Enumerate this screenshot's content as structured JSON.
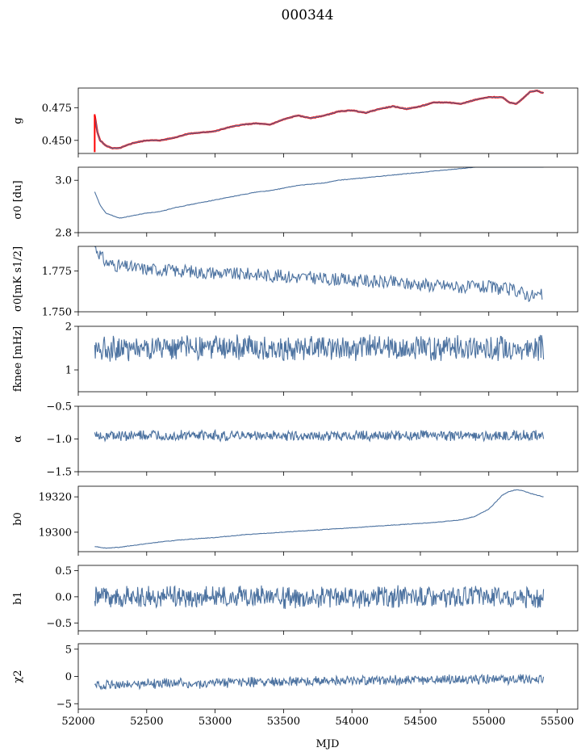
{
  "figure": {
    "title": "000344",
    "xlabel": "MJD"
  },
  "chart_data": [
    {
      "type": "line",
      "panel": "g",
      "ylabel": "g",
      "xlim": [
        52000,
        55650
      ],
      "ylim": [
        0.44,
        0.49
      ],
      "yticks": [
        0.45,
        0.475
      ],
      "yticklabels": [
        "0.450",
        "0.475"
      ],
      "grid": false,
      "series": [
        {
          "color": "#ff0000",
          "x": [
            52120,
            52140,
            52160,
            52200,
            52250,
            52300,
            52350,
            52400,
            52500,
            52600,
            52700,
            52800,
            52900,
            53000,
            53100,
            53200,
            53300,
            53400,
            53500,
            53600,
            53700,
            53800,
            53900,
            54000,
            54100,
            54200,
            54300,
            54400,
            54500,
            54600,
            54700,
            54800,
            54900,
            55000,
            55100,
            55150,
            55200,
            55250,
            55300,
            55350,
            55400
          ],
          "y": [
            0.469,
            0.456,
            0.45,
            0.446,
            0.444,
            0.444,
            0.446,
            0.448,
            0.45,
            0.45,
            0.452,
            0.455,
            0.456,
            0.457,
            0.46,
            0.462,
            0.463,
            0.462,
            0.466,
            0.469,
            0.467,
            0.469,
            0.472,
            0.473,
            0.471,
            0.474,
            0.476,
            0.474,
            0.476,
            0.479,
            0.479,
            0.478,
            0.481,
            0.483,
            0.483,
            0.479,
            0.478,
            0.482,
            0.487,
            0.488,
            0.486
          ]
        },
        {
          "color": "#4c72a0",
          "x": [
            52120,
            52140,
            52160,
            52200,
            52250,
            52300,
            52350,
            52400,
            52500,
            52600,
            52700,
            52800,
            52900,
            53000,
            53100,
            53200,
            53300,
            53400,
            53500,
            53600,
            53700,
            53800,
            53900,
            54000,
            54100,
            54200,
            54300,
            54400,
            54500,
            54600,
            54700,
            54800,
            54900,
            55000,
            55100,
            55150,
            55200,
            55250,
            55300,
            55350,
            55400
          ],
          "y": [
            0.469,
            0.456,
            0.45,
            0.446,
            0.444,
            0.444,
            0.446,
            0.448,
            0.45,
            0.45,
            0.452,
            0.455,
            0.456,
            0.457,
            0.46,
            0.462,
            0.463,
            0.462,
            0.466,
            0.469,
            0.467,
            0.469,
            0.472,
            0.473,
            0.471,
            0.474,
            0.476,
            0.474,
            0.476,
            0.479,
            0.479,
            0.478,
            0.481,
            0.483,
            0.483,
            0.479,
            0.478,
            0.482,
            0.487,
            0.488,
            0.486
          ]
        }
      ]
    },
    {
      "type": "line",
      "panel": "sigma0",
      "ylabel": "σ0 [du]",
      "xlim": [
        52000,
        55650
      ],
      "ylim": [
        2.8,
        3.05
      ],
      "yticks": [
        2.8,
        3.0
      ],
      "yticklabels": [
        "2.8",
        "3.0"
      ],
      "grid": false,
      "series": [
        {
          "color": "#4c72a0",
          "x": [
            52120,
            52160,
            52200,
            52250,
            52300,
            52400,
            52500,
            52600,
            52700,
            52800,
            52900,
            53000,
            53100,
            53200,
            53300,
            53400,
            53500,
            53600,
            53700,
            53800,
            53900,
            54000,
            54100,
            54200,
            54300,
            54400,
            54500,
            54600,
            54700,
            54800,
            54900,
            55000,
            55100,
            55200,
            55300,
            55400
          ],
          "y": [
            2.955,
            2.905,
            2.875,
            2.865,
            2.855,
            2.865,
            2.875,
            2.88,
            2.895,
            2.905,
            2.915,
            2.925,
            2.935,
            2.945,
            2.955,
            2.96,
            2.97,
            2.98,
            2.985,
            2.99,
            3.0,
            3.005,
            3.01,
            3.015,
            3.02,
            3.025,
            3.03,
            3.035,
            3.04,
            3.045,
            3.05,
            3.055,
            3.058,
            3.06,
            3.06,
            3.06
          ]
        }
      ]
    },
    {
      "type": "line",
      "panel": "sigma_noise",
      "ylabel": "σ0[mK s1/2]",
      "xlim": [
        52000,
        55650
      ],
      "ylim": [
        1.75,
        1.79
      ],
      "yticks": [
        1.75,
        1.775
      ],
      "yticklabels": [
        "1.750",
        "1.775"
      ],
      "grid": false,
      "series": [
        {
          "color": "#4c72a0",
          "x": [
            52120,
            52200,
            52300,
            52400,
            52500,
            52600,
            52700,
            52800,
            52900,
            53000,
            53100,
            53200,
            53300,
            53400,
            53500,
            53600,
            53700,
            53800,
            53900,
            54000,
            54100,
            54200,
            54300,
            54400,
            54500,
            54600,
            54700,
            54800,
            54900,
            55000,
            55100,
            55200,
            55300,
            55390
          ],
          "y": [
            1.79,
            1.78,
            1.778,
            1.777,
            1.776,
            1.776,
            1.775,
            1.775,
            1.774,
            1.774,
            1.773,
            1.773,
            1.773,
            1.772,
            1.772,
            1.771,
            1.771,
            1.77,
            1.77,
            1.769,
            1.769,
            1.768,
            1.768,
            1.767,
            1.767,
            1.766,
            1.766,
            1.765,
            1.765,
            1.765,
            1.764,
            1.763,
            1.76,
            1.76
          ]
        }
      ]
    },
    {
      "type": "line",
      "panel": "fknee",
      "ylabel": "fknee [mHz]",
      "xlim": [
        52000,
        55650
      ],
      "ylim": [
        0.5,
        2.0
      ],
      "yticks": [
        1,
        2
      ],
      "yticklabels": [
        "1",
        "2"
      ],
      "grid": false,
      "noise": {
        "mean": 1.5,
        "amplitude": 0.25
      },
      "series": [
        {
          "color": "#4c72a0",
          "x": [
            52120,
            55400
          ],
          "y": [
            1.5,
            1.5
          ]
        }
      ]
    },
    {
      "type": "line",
      "panel": "alpha",
      "ylabel": "α",
      "xlim": [
        52000,
        55650
      ],
      "ylim": [
        -1.5,
        -0.5
      ],
      "yticks": [
        -1.5,
        -1.0,
        -0.5
      ],
      "yticklabels": [
        "−1.5",
        "−1.0",
        "−0.5"
      ],
      "grid": false,
      "noise": {
        "mean": -0.95,
        "amplitude": 0.07
      },
      "series": [
        {
          "color": "#4c72a0",
          "x": [
            52120,
            55400
          ],
          "y": [
            -0.95,
            -0.95
          ]
        }
      ]
    },
    {
      "type": "line",
      "panel": "b0",
      "ylabel": "b0",
      "xlim": [
        52000,
        55650
      ],
      "ylim": [
        19289,
        19326
      ],
      "yticks": [
        19300,
        19320
      ],
      "yticklabels": [
        "19300",
        "19320"
      ],
      "grid": false,
      "series": [
        {
          "color": "#4c72a0",
          "x": [
            52120,
            52200,
            52300,
            52400,
            52500,
            52600,
            52800,
            53000,
            53200,
            53400,
            53600,
            53800,
            54000,
            54200,
            54400,
            54600,
            54800,
            54900,
            55000,
            55050,
            55100,
            55150,
            55200,
            55250,
            55300,
            55400
          ],
          "y": [
            19292,
            19291,
            19291.5,
            19292.5,
            19293.5,
            19294.5,
            19296,
            19297,
            19298.5,
            19299.5,
            19300.5,
            19301.5,
            19302.5,
            19303.5,
            19304.5,
            19305.5,
            19307,
            19309,
            19313,
            19317,
            19321,
            19323,
            19324,
            19323.5,
            19322,
            19320
          ]
        }
      ]
    },
    {
      "type": "line",
      "panel": "b1",
      "ylabel": "b1",
      "xlim": [
        52000,
        55650
      ],
      "ylim": [
        -0.65,
        0.6
      ],
      "yticks": [
        -0.5,
        0.0,
        0.5
      ],
      "yticklabels": [
        "−0.5",
        "0.0",
        "0.5"
      ],
      "grid": false,
      "noise": {
        "mean": 0.0,
        "amplitude": 0.18
      },
      "series": [
        {
          "color": "#4c72a0",
          "x": [
            52120,
            55400
          ],
          "y": [
            0.0,
            0.0
          ]
        }
      ]
    },
    {
      "type": "line",
      "panel": "chi2",
      "ylabel": "χ2",
      "xlim": [
        52000,
        55650
      ],
      "ylim": [
        -6,
        6
      ],
      "yticks": [
        -5,
        0,
        5
      ],
      "yticklabels": [
        "−5",
        "0",
        "5"
      ],
      "xticks": [
        52000,
        52500,
        53000,
        53500,
        54000,
        54500,
        55000,
        55500
      ],
      "xticklabels": [
        "52000",
        "52500",
        "53000",
        "53500",
        "54000",
        "54500",
        "55000",
        "55500"
      ],
      "grid": false,
      "noise": {
        "mean": -0.8,
        "amplitude": 0.8
      },
      "series": [
        {
          "color": "#4c72a0",
          "x": [
            52120,
            53000,
            54000,
            55400
          ],
          "y": [
            -1.5,
            -1.2,
            -0.7,
            -0.5
          ]
        }
      ]
    }
  ]
}
